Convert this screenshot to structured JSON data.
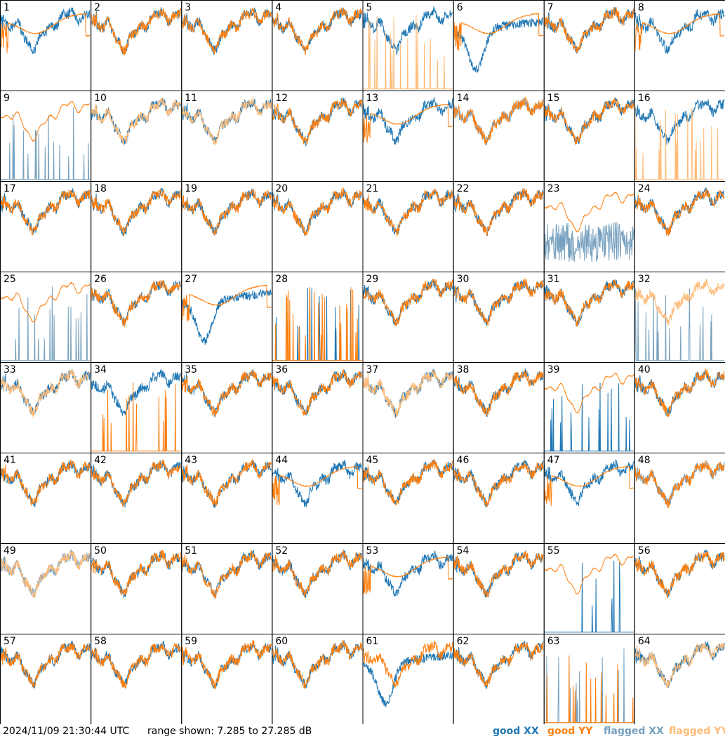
{
  "chart_data": {
    "type": "line",
    "title": "",
    "timestamp": "2024/11/09 21:30:44 UTC",
    "range_text": "range shown: 7.285 to 27.285 dB",
    "ylim": [
      7.285,
      27.285
    ],
    "legend": [
      {
        "label": "good XX",
        "color": "#1f77b4"
      },
      {
        "label": "good YY",
        "color": "#ff7f0e"
      },
      {
        "label": "flagged XX",
        "color": "#77a1bf"
      },
      {
        "label": "flagged YY",
        "color": "#ffbb78"
      }
    ],
    "legend_position": "bottom-right",
    "grid_rows": 8,
    "grid_cols": 8,
    "colors": {
      "xx": "#1f77b4",
      "yy": "#ff7f0e",
      "fxx": "#77a1bf",
      "fyy": "#ffbb78"
    },
    "tiles": [
      {
        "id": "1",
        "xx": "good",
        "yy": "good",
        "xx_style": "normal",
        "yy_style": "broad"
      },
      {
        "id": "2",
        "xx": "good",
        "yy": "good",
        "xx_style": "normal",
        "yy_style": "normal"
      },
      {
        "id": "3",
        "xx": "good",
        "yy": "good",
        "xx_style": "normal",
        "yy_style": "normal"
      },
      {
        "id": "4",
        "xx": "good",
        "yy": "good",
        "xx_style": "normal",
        "yy_style": "normal"
      },
      {
        "id": "5",
        "xx": "good",
        "yy": "flagged",
        "xx_style": "normal",
        "yy_style": "spiky"
      },
      {
        "id": "6",
        "xx": "good",
        "yy": "good",
        "xx_style": "dip",
        "yy_style": "broad"
      },
      {
        "id": "7",
        "xx": "good",
        "yy": "good",
        "xx_style": "normal",
        "yy_style": "normal"
      },
      {
        "id": "8",
        "xx": "good",
        "yy": "good",
        "xx_style": "normal",
        "yy_style": "broad"
      },
      {
        "id": "9",
        "xx": "flagged",
        "yy": "good",
        "xx_style": "spiky",
        "yy_style": "smooth"
      },
      {
        "id": "10",
        "xx": "good",
        "yy": "flagged",
        "xx_style": "normal",
        "yy_style": "normal"
      },
      {
        "id": "11",
        "xx": "good",
        "yy": "flagged",
        "xx_style": "normal",
        "yy_style": "normal"
      },
      {
        "id": "12",
        "xx": "good",
        "yy": "good",
        "xx_style": "normal",
        "yy_style": "normal"
      },
      {
        "id": "13",
        "xx": "good",
        "yy": "good",
        "xx_style": "normal",
        "yy_style": "broad"
      },
      {
        "id": "14",
        "xx": "flagged",
        "yy": "good",
        "xx_style": "normal",
        "yy_style": "normal"
      },
      {
        "id": "15",
        "xx": "good",
        "yy": "good",
        "xx_style": "normal",
        "yy_style": "normal"
      },
      {
        "id": "16",
        "xx": "good",
        "yy": "flagged",
        "xx_style": "normal",
        "yy_style": "spiky"
      },
      {
        "id": "17",
        "xx": "good",
        "yy": "good",
        "xx_style": "normal",
        "yy_style": "normal"
      },
      {
        "id": "18",
        "xx": "good",
        "yy": "good",
        "xx_style": "normal",
        "yy_style": "normal"
      },
      {
        "id": "19",
        "xx": "good",
        "yy": "good",
        "xx_style": "normal",
        "yy_style": "normal"
      },
      {
        "id": "20",
        "xx": "good",
        "yy": "good",
        "xx_style": "normal",
        "yy_style": "normal"
      },
      {
        "id": "21",
        "xx": "good",
        "yy": "good",
        "xx_style": "normal",
        "yy_style": "normal"
      },
      {
        "id": "22",
        "xx": "good",
        "yy": "good",
        "xx_style": "normal",
        "yy_style": "normal"
      },
      {
        "id": "23",
        "xx": "flagged",
        "yy": "good",
        "xx_style": "noisy",
        "yy_style": "smooth"
      },
      {
        "id": "24",
        "xx": "good",
        "yy": "good",
        "xx_style": "normal",
        "yy_style": "normal"
      },
      {
        "id": "25",
        "xx": "flagged",
        "yy": "good",
        "xx_style": "spiky",
        "yy_style": "smooth"
      },
      {
        "id": "26",
        "xx": "good",
        "yy": "good",
        "xx_style": "normal",
        "yy_style": "normal"
      },
      {
        "id": "27",
        "xx": "good",
        "yy": "good",
        "xx_style": "dip",
        "yy_style": "broad"
      },
      {
        "id": "28",
        "xx": "good",
        "yy": "good",
        "xx_style": "spiky",
        "yy_style": "spiky"
      },
      {
        "id": "29",
        "xx": "good",
        "yy": "good",
        "xx_style": "normal",
        "yy_style": "normal"
      },
      {
        "id": "30",
        "xx": "good",
        "yy": "good",
        "xx_style": "normal",
        "yy_style": "normal"
      },
      {
        "id": "31",
        "xx": "good",
        "yy": "good",
        "xx_style": "normal",
        "yy_style": "normal"
      },
      {
        "id": "32",
        "xx": "flagged",
        "yy": "flagged",
        "xx_style": "spiky",
        "yy_style": "normal"
      },
      {
        "id": "33",
        "xx": "good",
        "yy": "flagged",
        "xx_style": "normal",
        "yy_style": "normal"
      },
      {
        "id": "34",
        "xx": "good",
        "yy": "good",
        "xx_style": "normal",
        "yy_style": "spiky"
      },
      {
        "id": "35",
        "xx": "good",
        "yy": "good",
        "xx_style": "normal",
        "yy_style": "normal"
      },
      {
        "id": "36",
        "xx": "good",
        "yy": "good",
        "xx_style": "normal",
        "yy_style": "normal"
      },
      {
        "id": "37",
        "xx": "good",
        "yy": "flagged",
        "xx_style": "normal",
        "yy_style": "normal"
      },
      {
        "id": "38",
        "xx": "good",
        "yy": "good",
        "xx_style": "normal",
        "yy_style": "normal"
      },
      {
        "id": "39",
        "xx": "good",
        "yy": "good",
        "xx_style": "spiky",
        "yy_style": "smooth"
      },
      {
        "id": "40",
        "xx": "good",
        "yy": "good",
        "xx_style": "normal",
        "yy_style": "normal"
      },
      {
        "id": "41",
        "xx": "good",
        "yy": "good",
        "xx_style": "normal",
        "yy_style": "normal"
      },
      {
        "id": "42",
        "xx": "good",
        "yy": "good",
        "xx_style": "normal",
        "yy_style": "normal"
      },
      {
        "id": "43",
        "xx": "good",
        "yy": "good",
        "xx_style": "normal",
        "yy_style": "normal"
      },
      {
        "id": "44",
        "xx": "good",
        "yy": "good",
        "xx_style": "normal",
        "yy_style": "broad"
      },
      {
        "id": "45",
        "xx": "good",
        "yy": "good",
        "xx_style": "normal",
        "yy_style": "normal"
      },
      {
        "id": "46",
        "xx": "good",
        "yy": "good",
        "xx_style": "normal",
        "yy_style": "normal"
      },
      {
        "id": "47",
        "xx": "good",
        "yy": "good",
        "xx_style": "normal",
        "yy_style": "broad"
      },
      {
        "id": "48",
        "xx": "flagged",
        "yy": "good",
        "xx_style": "normal",
        "yy_style": "normal"
      },
      {
        "id": "49",
        "xx": "flagged",
        "yy": "flagged",
        "xx_style": "normal",
        "yy_style": "normal"
      },
      {
        "id": "50",
        "xx": "good",
        "yy": "good",
        "xx_style": "normal",
        "yy_style": "normal"
      },
      {
        "id": "51",
        "xx": "good",
        "yy": "good",
        "xx_style": "normal",
        "yy_style": "normal"
      },
      {
        "id": "52",
        "xx": "good",
        "yy": "good",
        "xx_style": "normal",
        "yy_style": "normal"
      },
      {
        "id": "53",
        "xx": "good",
        "yy": "good",
        "xx_style": "normal",
        "yy_style": "broad"
      },
      {
        "id": "54",
        "xx": "good",
        "yy": "good",
        "xx_style": "normal",
        "yy_style": "normal"
      },
      {
        "id": "55",
        "xx": "good",
        "yy": "good",
        "xx_style": "spiky",
        "yy_style": "smooth"
      },
      {
        "id": "56",
        "xx": "good",
        "yy": "good",
        "xx_style": "normal",
        "yy_style": "normal"
      },
      {
        "id": "57",
        "xx": "good",
        "yy": "good",
        "xx_style": "normal",
        "yy_style": "normal"
      },
      {
        "id": "58",
        "xx": "good",
        "yy": "good",
        "xx_style": "normal",
        "yy_style": "normal"
      },
      {
        "id": "59",
        "xx": "good",
        "yy": "good",
        "xx_style": "normal",
        "yy_style": "normal"
      },
      {
        "id": "60",
        "xx": "good",
        "yy": "good",
        "xx_style": "normal",
        "yy_style": "normal"
      },
      {
        "id": "61",
        "xx": "good",
        "yy": "good",
        "xx_style": "dip",
        "yy_style": "normal"
      },
      {
        "id": "62",
        "xx": "good",
        "yy": "good",
        "xx_style": "normal",
        "yy_style": "normal"
      },
      {
        "id": "63",
        "xx": "flagged",
        "yy": "good",
        "xx_style": "spiky",
        "yy_style": "spiky"
      },
      {
        "id": "64",
        "xx": "good",
        "yy": "flagged",
        "xx_style": "normal",
        "yy_style": "normal"
      }
    ]
  }
}
